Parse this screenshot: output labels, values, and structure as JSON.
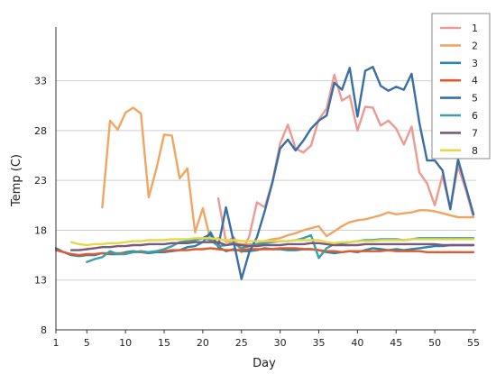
{
  "chart_data": {
    "type": "line",
    "title": "",
    "xlabel": "Day",
    "ylabel": "Temp (C)",
    "xlim": [
      1,
      55
    ],
    "ylim": [
      8,
      35.5
    ],
    "xticks": [
      1,
      5,
      10,
      15,
      20,
      25,
      30,
      35,
      40,
      45,
      50,
      55
    ],
    "yticks": [
      8,
      13,
      18,
      23,
      28,
      33
    ],
    "grid": "horizontal",
    "legend_position": "top-right",
    "series": [
      {
        "name": "1",
        "color": "#ec9a93",
        "x": [
          22,
          23,
          24,
          25,
          26,
          27,
          28,
          29,
          30,
          31,
          32,
          33,
          34,
          35,
          36,
          37,
          38,
          39,
          40,
          41,
          42,
          43,
          44,
          45,
          46,
          47,
          48,
          49,
          50,
          51,
          52,
          53,
          54,
          55
        ],
        "y": [
          21.2,
          16.8,
          17.3,
          15.8,
          17.4,
          20.8,
          20.3,
          22.9,
          26.7,
          28.6,
          26.2,
          25.8,
          26.5,
          29.1,
          30.2,
          33.6,
          31.0,
          31.5,
          28.0,
          30.4,
          30.3,
          28.5,
          29.0,
          28.2,
          26.6,
          28.4,
          23.8,
          22.7,
          20.5,
          23.5,
          20.2,
          24.4,
          22.1,
          19.3
        ]
      },
      {
        "name": "2",
        "color": "#f0a663",
        "x": [
          7,
          8,
          9,
          10,
          11,
          12,
          13,
          14,
          15,
          16,
          17,
          18,
          19,
          20,
          21,
          22,
          23,
          24,
          25,
          26,
          27,
          28,
          29,
          30,
          31,
          32,
          33,
          34,
          35,
          36,
          37,
          38,
          39,
          40,
          41,
          42,
          43,
          44,
          45,
          46,
          47,
          48,
          49,
          50,
          51,
          52,
          53,
          54,
          55
        ],
        "y": [
          20.3,
          29.0,
          28.1,
          29.8,
          30.3,
          29.7,
          21.3,
          24.2,
          27.6,
          27.5,
          23.2,
          24.2,
          17.8,
          20.2,
          17.0,
          17.2,
          16.9,
          16.7,
          16.6,
          16.6,
          16.6,
          16.9,
          17.1,
          17.2,
          17.5,
          17.7,
          18.0,
          18.2,
          18.4,
          17.4,
          17.9,
          18.4,
          18.8,
          19.0,
          19.1,
          19.3,
          19.5,
          19.8,
          19.6,
          19.7,
          19.8,
          20.0,
          20.0,
          19.9,
          19.7,
          19.5,
          19.3,
          19.3,
          19.3
        ]
      },
      {
        "name": "3",
        "color": "#2a86a8",
        "x": [
          1,
          2,
          3,
          4,
          5,
          6,
          7,
          8,
          9,
          10,
          11,
          12,
          13,
          14,
          15,
          16,
          17,
          18,
          19,
          20,
          21,
          22,
          23,
          24,
          25,
          26,
          27,
          28,
          29,
          30,
          31,
          32,
          33,
          34,
          35,
          36,
          37,
          38,
          39,
          40,
          41,
          42,
          43,
          44,
          45,
          46,
          47,
          48,
          49,
          50,
          51,
          52,
          53,
          54,
          55
        ],
        "y": [
          16.2,
          15.8,
          15.5,
          15.4,
          15.5,
          15.5,
          15.7,
          15.6,
          15.6,
          15.8,
          15.9,
          15.8,
          15.7,
          15.8,
          15.8,
          15.9,
          16.0,
          16.3,
          16.4,
          16.8,
          17.8,
          16.3,
          15.9,
          16.1,
          15.9,
          15.9,
          16.0,
          16.2,
          16.1,
          16.1,
          16.0,
          16.0,
          16.1,
          16.1,
          16.0,
          15.8,
          15.7,
          15.8,
          15.9,
          15.8,
          16.0,
          16.2,
          16.1,
          16.0,
          16.1,
          16.0,
          16.1,
          16.2,
          16.3,
          16.4,
          16.4,
          16.5,
          16.5,
          16.5,
          16.5
        ]
      },
      {
        "name": "4",
        "color": "#e05a30",
        "x": [
          1,
          2,
          3,
          4,
          5,
          6,
          7,
          8,
          9,
          10,
          11,
          12,
          13,
          14,
          15,
          16,
          17,
          18,
          19,
          20,
          21,
          22,
          23,
          24,
          25,
          26,
          27,
          28,
          29,
          30,
          31,
          32,
          33,
          34,
          35,
          36,
          37,
          38,
          39,
          40,
          41,
          42,
          43,
          44,
          45,
          46,
          47,
          48,
          49,
          50,
          51,
          52,
          53,
          54,
          55
        ],
        "y": [
          16.0,
          15.8,
          15.6,
          15.5,
          15.6,
          15.6,
          15.7,
          15.7,
          15.7,
          15.7,
          15.8,
          15.8,
          15.8,
          15.9,
          15.9,
          16.0,
          16.0,
          16.0,
          16.1,
          16.1,
          16.2,
          16.1,
          16.0,
          16.0,
          16.0,
          16.1,
          16.1,
          16.1,
          16.1,
          16.2,
          16.2,
          16.2,
          16.1,
          16.1,
          16.0,
          15.9,
          15.9,
          15.8,
          15.9,
          15.9,
          15.9,
          15.9,
          15.9,
          16.0,
          15.9,
          15.9,
          15.9,
          15.9,
          15.8,
          15.8,
          15.8,
          15.8,
          15.8,
          15.8,
          15.8
        ]
      },
      {
        "name": "5",
        "color": "#3a6ea5",
        "x": [
          19,
          20,
          21,
          22,
          23,
          24,
          25,
          26,
          27,
          28,
          29,
          30,
          31,
          32,
          33,
          34,
          35,
          36,
          37,
          38,
          39,
          40,
          41,
          42,
          43,
          44,
          45,
          46,
          47,
          48,
          49,
          50,
          51,
          52,
          53,
          54,
          55
        ],
        "y": [
          17.1,
          17.2,
          17.6,
          16.4,
          20.3,
          16.8,
          13.1,
          15.8,
          17.3,
          19.9,
          22.8,
          26.2,
          27.1,
          26.0,
          27.0,
          28.2,
          29.0,
          29.5,
          32.8,
          32.1,
          34.3,
          29.4,
          34.0,
          34.4,
          32.5,
          32.0,
          32.4,
          32.1,
          33.7,
          28.8,
          25.0,
          25.0,
          24.0,
          20.1,
          25.1,
          22.4,
          19.6
        ]
      },
      {
        "name": "6",
        "color": "#3aa0a8",
        "x": [
          5,
          6,
          7,
          8,
          9,
          10,
          11,
          12,
          13,
          14,
          15,
          16,
          17,
          18,
          19,
          20,
          21,
          22,
          23,
          24,
          25,
          26,
          27,
          28,
          29,
          30,
          31,
          32,
          33,
          34,
          35,
          36,
          37,
          38,
          39,
          40,
          41,
          42,
          43,
          44,
          45,
          46,
          47,
          48,
          49,
          50,
          51,
          52,
          53,
          54,
          55
        ],
        "y": [
          14.8,
          15.1,
          15.3,
          15.9,
          15.6,
          15.6,
          15.8,
          15.9,
          15.8,
          15.9,
          16.1,
          16.4,
          16.8,
          16.9,
          17.0,
          17.2,
          17.0,
          16.4,
          16.5,
          16.7,
          16.2,
          16.4,
          16.6,
          16.7,
          16.8,
          16.9,
          16.9,
          17.0,
          17.2,
          17.5,
          15.2,
          16.2,
          16.6,
          16.7,
          16.8,
          16.9,
          17.0,
          17.0,
          17.1,
          17.1,
          17.1,
          17.0,
          17.1,
          17.2,
          17.2,
          17.2,
          17.2,
          17.2,
          17.2,
          17.2,
          17.2
        ]
      },
      {
        "name": "7",
        "color": "#7a5a7a",
        "x": [
          3,
          4,
          5,
          6,
          7,
          8,
          9,
          10,
          11,
          12,
          13,
          14,
          15,
          16,
          17,
          18,
          19,
          20,
          21,
          22,
          23,
          24,
          25,
          26,
          27,
          28,
          29,
          30,
          31,
          32,
          33,
          34,
          35,
          36,
          37,
          38,
          39,
          40,
          41,
          42,
          43,
          44,
          45,
          46,
          47,
          48,
          49,
          50,
          51,
          52,
          53,
          54,
          55
        ],
        "y": [
          16.0,
          16.0,
          16.1,
          16.2,
          16.3,
          16.3,
          16.4,
          16.4,
          16.5,
          16.5,
          16.6,
          16.6,
          16.6,
          16.7,
          16.7,
          16.7,
          16.8,
          16.8,
          16.8,
          16.8,
          16.5,
          16.6,
          16.5,
          16.4,
          16.4,
          16.5,
          16.5,
          16.5,
          16.6,
          16.6,
          16.6,
          16.7,
          16.7,
          16.6,
          16.5,
          16.5,
          16.5,
          16.5,
          16.6,
          16.6,
          16.6,
          16.6,
          16.6,
          16.6,
          16.6,
          16.6,
          16.6,
          16.6,
          16.5,
          16.5,
          16.5,
          16.5,
          16.5
        ]
      },
      {
        "name": "8",
        "color": "#e7d84a",
        "x": [
          3,
          4,
          5,
          6,
          7,
          8,
          9,
          10,
          11,
          12,
          13,
          14,
          15,
          16,
          17,
          18,
          19,
          20,
          21,
          22,
          23,
          24,
          25,
          26,
          27,
          28,
          29,
          30,
          31,
          32,
          33,
          34,
          35,
          36,
          37,
          38,
          39,
          40,
          41,
          42,
          43,
          44,
          45,
          46,
          47,
          48,
          49,
          50,
          51,
          52,
          53,
          54,
          55
        ],
        "y": [
          16.8,
          16.6,
          16.5,
          16.6,
          16.6,
          16.7,
          16.7,
          16.8,
          16.9,
          16.9,
          17.0,
          17.0,
          17.0,
          17.1,
          17.1,
          17.1,
          17.2,
          17.2,
          17.2,
          17.1,
          17.0,
          17.0,
          16.9,
          16.9,
          16.9,
          16.9,
          16.9,
          16.9,
          16.9,
          17.0,
          17.0,
          17.0,
          17.0,
          16.8,
          16.7,
          16.8,
          16.8,
          16.9,
          16.9,
          16.9,
          17.0,
          17.0,
          17.0,
          17.0,
          17.1,
          17.1,
          17.1,
          17.1,
          17.1,
          17.1,
          17.1,
          17.1,
          17.1
        ]
      }
    ]
  }
}
